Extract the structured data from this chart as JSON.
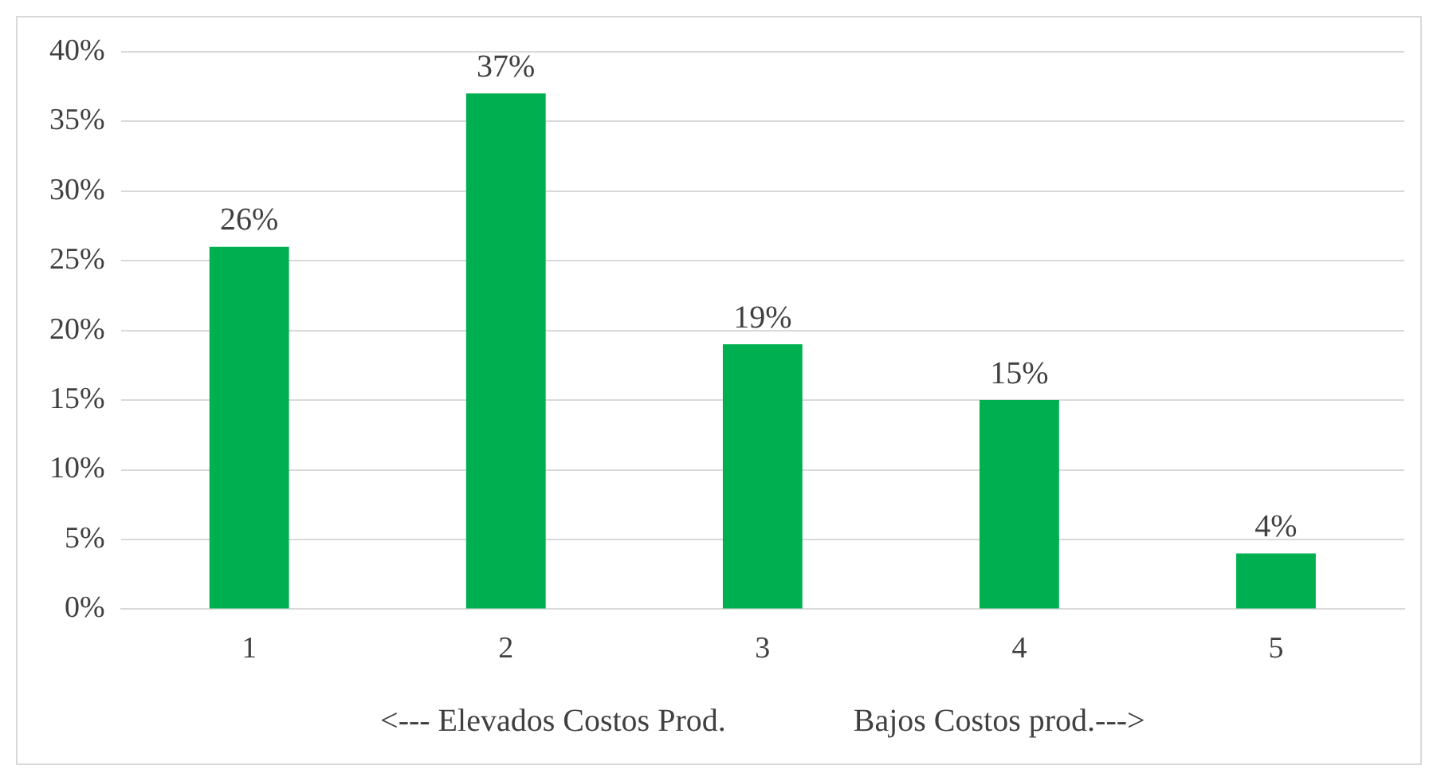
{
  "chart_data": {
    "type": "bar",
    "xlabel": "<--- Elevados Costos Prod.                Bajos Costos prod.--->",
    "categories": [
      "1",
      "2",
      "3",
      "4",
      "5"
    ],
    "values": [
      26,
      37,
      19,
      15,
      4
    ],
    "value_labels": [
      "26%",
      "37%",
      "19%",
      "15%",
      "4%"
    ],
    "color": "#00b050",
    "ylim": [
      0,
      40
    ],
    "yticks": [
      {
        "value": 0,
        "label": "0%"
      },
      {
        "value": 5,
        "label": "5%"
      },
      {
        "value": 10,
        "label": "10%"
      },
      {
        "value": 15,
        "label": "15%"
      },
      {
        "value": 20,
        "label": "20%"
      },
      {
        "value": 25,
        "label": "25%"
      },
      {
        "value": 30,
        "label": "30%"
      },
      {
        "value": 35,
        "label": "35%"
      },
      {
        "value": 40,
        "label": "40%"
      }
    ],
    "grid": "y",
    "legend": false
  }
}
